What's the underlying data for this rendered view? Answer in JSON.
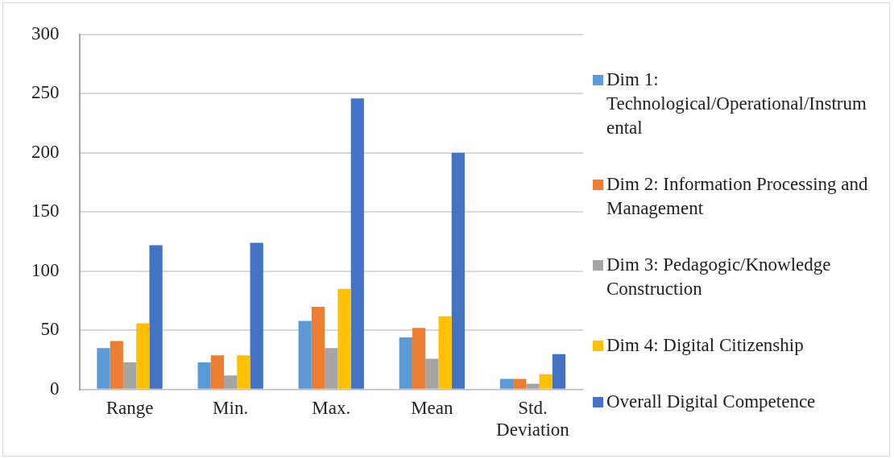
{
  "chart_data": {
    "type": "bar",
    "categories": [
      "Range",
      "Min.",
      "Max.",
      "Mean",
      "Std. Deviation"
    ],
    "series": [
      {
        "name": "Dim 1: Technological/Operational/Instrumental",
        "color": "#5b9bd5",
        "values": [
          35,
          23,
          58,
          44,
          9
        ]
      },
      {
        "name": "Dim 2: Information Processing and Management",
        "color": "#ed7d31",
        "values": [
          41,
          29,
          70,
          52,
          9
        ]
      },
      {
        "name": "Dim 3: Pedagogic/Knowledge Construction",
        "color": "#a5a5a5",
        "values": [
          23,
          12,
          35,
          26,
          5
        ]
      },
      {
        "name": "Dim 4: Digital Citizenship",
        "color": "#ffc000",
        "values": [
          56,
          29,
          85,
          62,
          13
        ]
      },
      {
        "name": "Overall Digital Competence",
        "color": "#4472c4",
        "values": [
          122,
          124,
          246,
          200,
          30
        ]
      }
    ],
    "ylim": [
      0,
      300
    ],
    "yticks": [
      0,
      50,
      100,
      150,
      200,
      250,
      300
    ],
    "grid": "y",
    "legend": "right"
  }
}
